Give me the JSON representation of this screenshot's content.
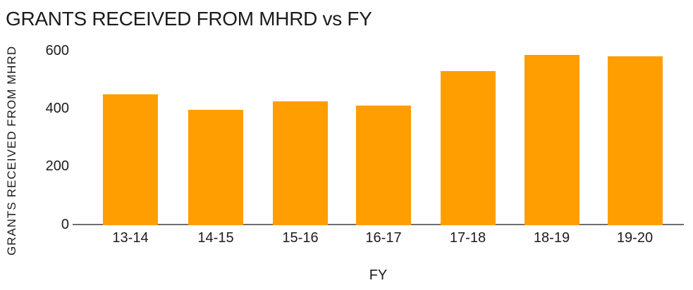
{
  "title": "GRANTS RECEIVED FROM MHRD vs FY",
  "colors": {
    "bar": "#ff9e00",
    "axis_line": "#6e6e6e",
    "text": "#1c1c1c",
    "background": "#ffffff"
  },
  "chart_data": {
    "type": "bar",
    "title": "GRANTS RECEIVED FROM MHRD vs FY",
    "categories": [
      "13-14",
      "14-15",
      "15-16",
      "16-17",
      "17-18",
      "18-19",
      "19-20"
    ],
    "values": [
      450,
      395,
      425,
      410,
      530,
      585,
      580
    ],
    "xlabel": "FY",
    "ylabel": "GRANTS RECEIVED FROM MHRD",
    "yticks": [
      0,
      200,
      400,
      600
    ],
    "ylim": [
      0,
      600
    ],
    "grid": false,
    "legend": "none",
    "bar_color": "#ff9e00"
  }
}
